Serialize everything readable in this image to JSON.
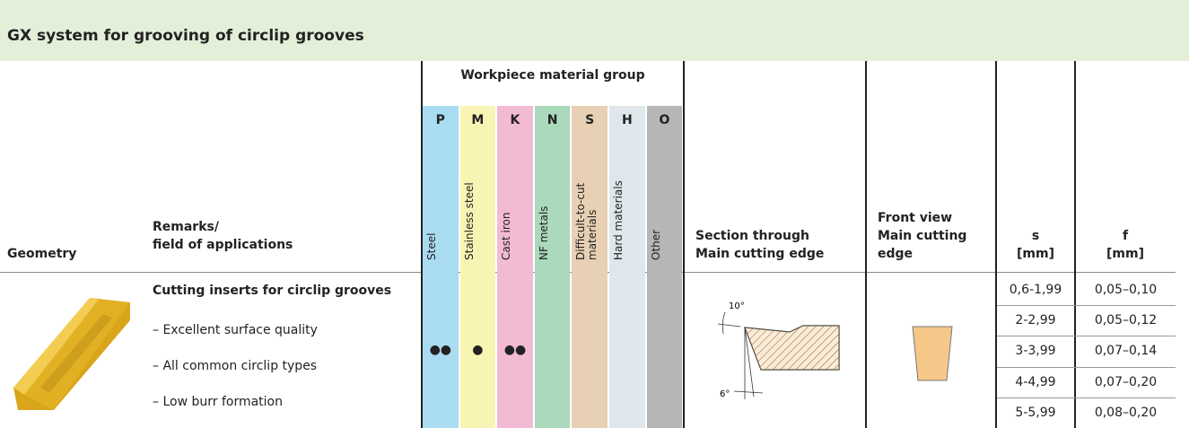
{
  "header": {
    "title": "GX system for grooving of circlip grooves"
  },
  "table": {
    "columns": {
      "geometry": "Geometry",
      "remarks": "Remarks/\nfield of applications",
      "material_group": "Workpiece material group",
      "section": "Section through\nMain cutting edge",
      "front_view": "Front view\nMain cutting\nedge",
      "s": "s\n[mm]",
      "f": "f\n[mm]"
    },
    "materials": [
      {
        "code": "P",
        "name": "Steel",
        "color": "#a9dcf1"
      },
      {
        "code": "M",
        "name": "Stainless steel",
        "color": "#f8f4b4"
      },
      {
        "code": "K",
        "name": "Cast iron",
        "color": "#f3bad4"
      },
      {
        "code": "N",
        "name": "NF metals",
        "color": "#aad9bb"
      },
      {
        "code": "S",
        "name": "Difficult-to-cut materials",
        "color": "#e7d0b3"
      },
      {
        "code": "H",
        "name": "Hard materials",
        "color": "#dfe7ec"
      },
      {
        "code": "O",
        "name": "Other",
        "color": "#b6b6b6"
      }
    ],
    "row": {
      "title": "Cutting inserts for circlip grooves",
      "remarks": [
        "– Excellent surface quality",
        "– All common circlip types",
        "– Low burr formation"
      ],
      "ratings": {
        "P": "●●",
        "M": "●",
        "K": "●●"
      },
      "section_angles": [
        "10°",
        "6°"
      ],
      "sizes": [
        {
          "s": "0,6-1,99",
          "f": "0,05–0,10"
        },
        {
          "s": "2-2,99",
          "f": "0,05–0,12"
        },
        {
          "s": "3-3,99",
          "f": "0,07–0,14"
        },
        {
          "s": "4-4,99",
          "f": "0,07–0,20"
        },
        {
          "s": "5-5,99",
          "f": "0,08–0,20"
        }
      ]
    }
  }
}
